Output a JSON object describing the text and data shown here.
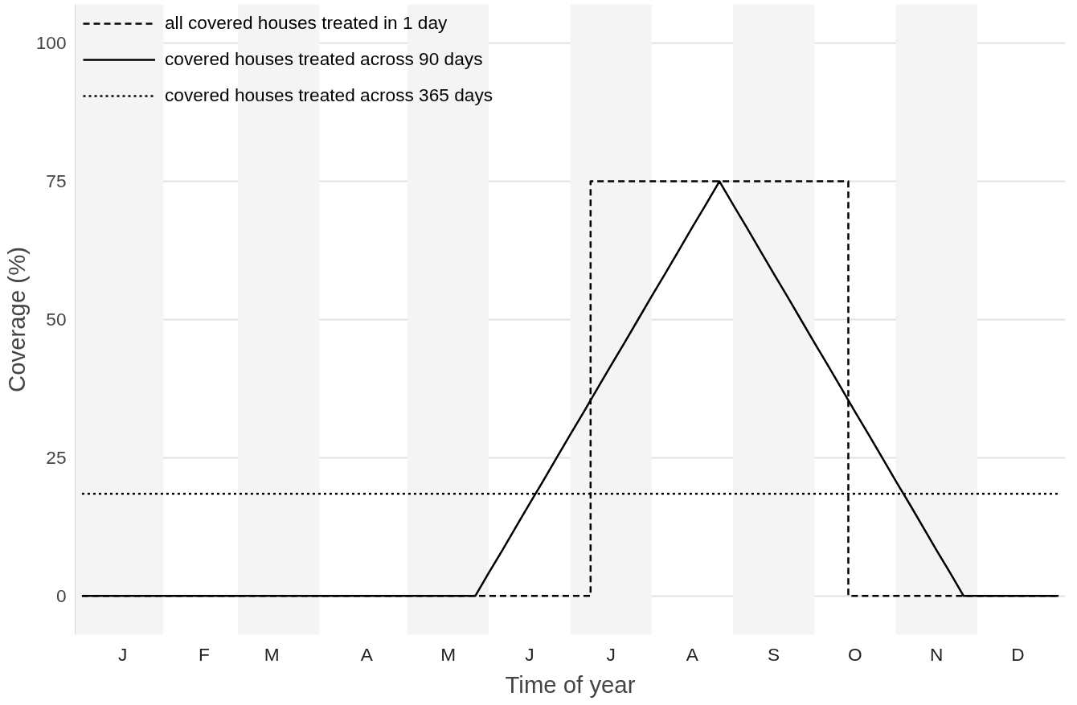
{
  "chart_data": {
    "type": "line",
    "xlabel": "Time of year",
    "ylabel": "Coverage (%)",
    "categories": [
      null,
      null,
      null,
      "J",
      null,
      null,
      null,
      null,
      null,
      "F",
      null,
      null,
      null,
      null,
      "M",
      null,
      null,
      null,
      null,
      null,
      null,
      "A",
      null,
      null,
      null,
      null,
      null,
      "M",
      null,
      null,
      null,
      null,
      null,
      "J",
      null,
      null,
      null,
      null,
      null,
      "J",
      null,
      null,
      null,
      null,
      null,
      "A",
      null,
      null,
      null,
      null,
      null,
      "S",
      null,
      null,
      null,
      null,
      null,
      "O",
      null,
      null,
      null,
      null,
      null,
      "N",
      null,
      null,
      null,
      null,
      null,
      "D",
      null,
      null,
      null
    ],
    "ylim": [
      -7,
      107
    ],
    "yticks": [
      0,
      25,
      50,
      75,
      100
    ],
    "grid": "y",
    "legend": "top left",
    "marker": "none",
    "series": [
      {
        "name": "all covered houses treated in 1 day",
        "type": "step",
        "color": "#000000",
        "line_style": "dashed",
        "values": [
          0,
          0,
          0,
          0,
          0,
          0,
          0,
          0,
          0,
          0,
          0,
          0,
          0,
          0,
          0,
          0,
          0,
          0,
          0,
          0,
          0,
          0,
          0,
          0,
          0,
          0,
          0,
          0,
          0,
          0,
          0,
          0,
          0,
          0,
          0,
          0,
          0,
          0,
          75,
          75,
          75,
          75,
          75,
          75,
          75,
          75,
          75,
          75,
          75,
          75,
          75,
          75,
          75,
          75,
          75,
          75,
          75,
          0,
          0,
          0,
          0,
          0,
          0,
          0,
          0,
          0,
          0,
          0,
          0,
          0,
          0,
          0,
          0
        ]
      },
      {
        "name": "covered houses treated across 90 days",
        "color": "#000000",
        "line_style": "solid",
        "values": [
          0,
          0,
          0,
          0,
          0,
          0,
          0,
          0,
          0,
          0,
          0,
          0,
          0,
          0,
          0,
          0,
          0,
          0,
          0,
          0,
          0,
          0,
          0,
          0,
          0,
          0,
          0,
          0,
          0,
          0,
          4.2,
          8.3,
          12.5,
          16.7,
          20.8,
          25,
          29.2,
          33.3,
          37.5,
          41.7,
          45.8,
          50,
          54.2,
          58.3,
          62.5,
          66.7,
          70.8,
          75,
          70.8,
          66.7,
          62.5,
          58.3,
          54.2,
          50,
          45.8,
          41.7,
          37.5,
          33.3,
          29.2,
          25,
          20.8,
          16.7,
          12.5,
          8.3,
          4.2,
          0,
          0,
          0,
          0,
          0,
          0,
          0,
          0
        ]
      },
      {
        "name": "covered houses treated across 365 days",
        "color": "#000000",
        "line_style": "dotted",
        "values": [
          18.5,
          18.5,
          18.5,
          18.5,
          18.5,
          18.5,
          18.5,
          18.5,
          18.5,
          18.5,
          18.5,
          18.5,
          18.5,
          18.5,
          18.5,
          18.5,
          18.5,
          18.5,
          18.5,
          18.5,
          18.5,
          18.5,
          18.5,
          18.5,
          18.5,
          18.5,
          18.5,
          18.5,
          18.5,
          18.5,
          18.5,
          18.5,
          18.5,
          18.5,
          18.5,
          18.5,
          18.5,
          18.5,
          18.5,
          18.5,
          18.5,
          18.5,
          18.5,
          18.5,
          18.5,
          18.5,
          18.5,
          18.5,
          18.5,
          18.5,
          18.5,
          18.5,
          18.5,
          18.5,
          18.5,
          18.5,
          18.5,
          18.5,
          18.5,
          18.5,
          18.5,
          18.5,
          18.5,
          18.5,
          18.5,
          18.5,
          18.5,
          18.5,
          18.5,
          18.5,
          18.5,
          18.5,
          18.5
        ]
      }
    ]
  }
}
